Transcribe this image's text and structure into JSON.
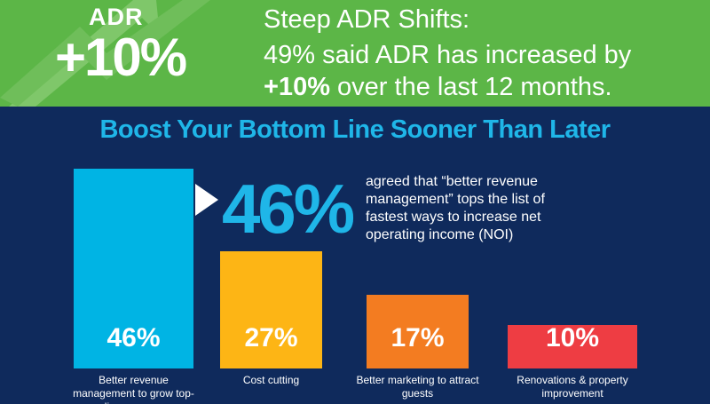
{
  "banner": {
    "badge_label": "ADR",
    "badge_value": "+10%",
    "headline": "Steep ADR Shifts:",
    "line1": "49% said ADR has increased by",
    "line2_bold": "+10%",
    "line2_rest": " over the last 12 months."
  },
  "chart_data": {
    "type": "bar",
    "title": "Boost Your Bottom Line Sooner Than Later",
    "callout": {
      "value": "46%",
      "text": "agreed that “better revenue management” tops the list of fastest ways to increase net operating income (NOI)"
    },
    "categories": [
      "Better revenue management to grow top-line revenue",
      "Cost cutting",
      "Better marketing to attract guests",
      "Renovations & property improvement"
    ],
    "values": [
      46,
      27,
      17,
      10
    ],
    "value_labels": [
      "46%",
      "27%",
      "17%",
      "10%"
    ],
    "colors": [
      "#00b4e4",
      "#fdb515",
      "#f37c21",
      "#ee3d43"
    ]
  }
}
